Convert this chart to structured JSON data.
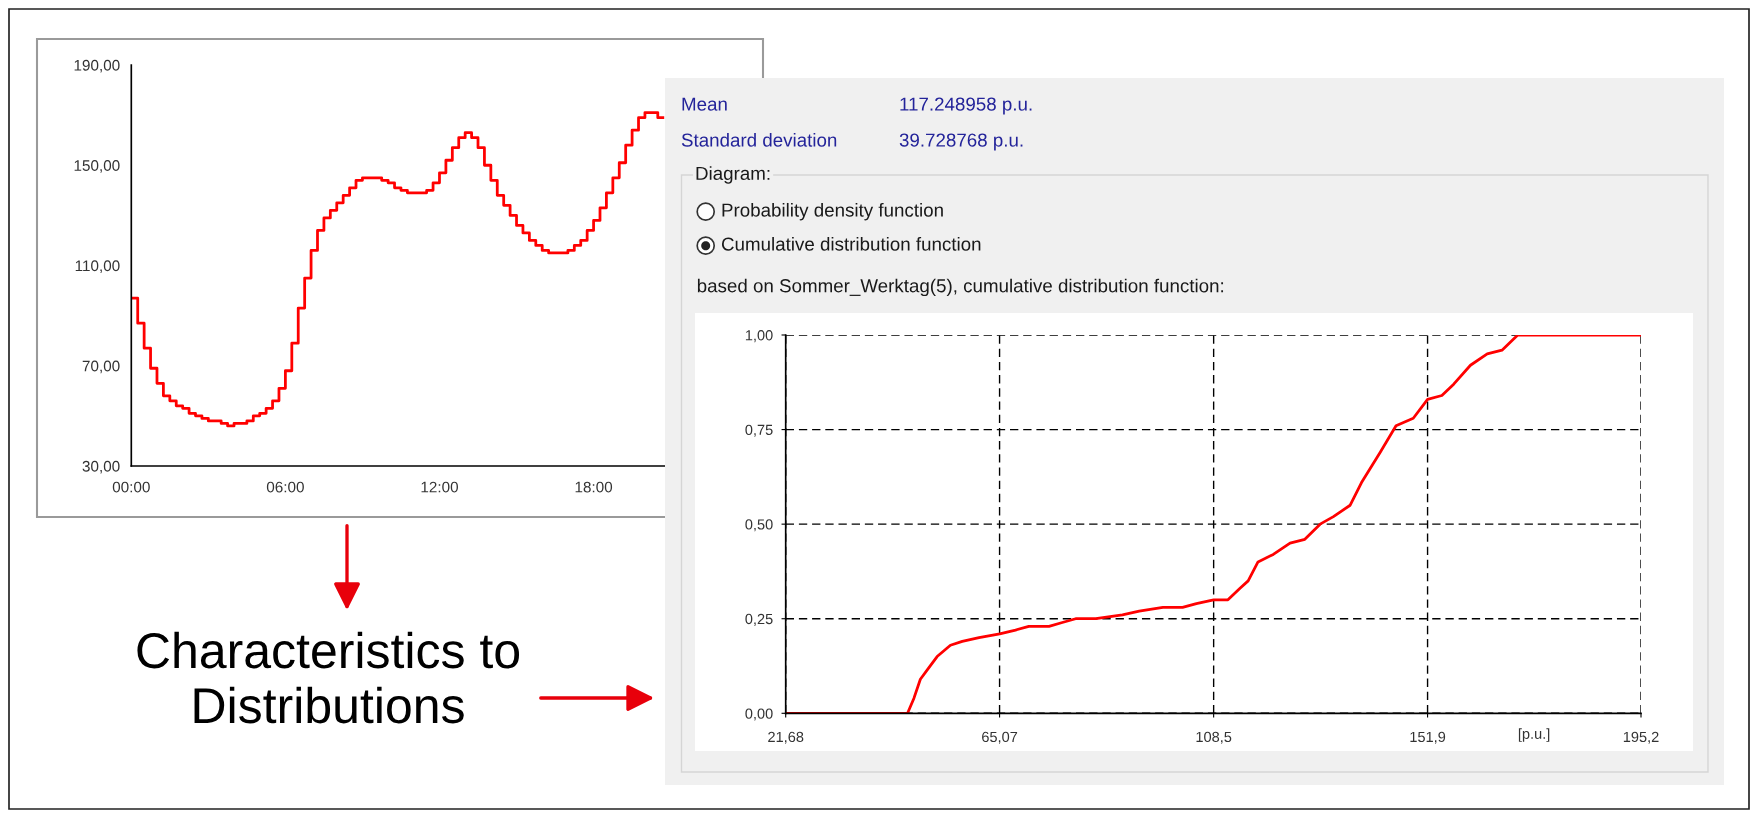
{
  "chart_data": [
    {
      "type": "step",
      "x": [
        0,
        0.25,
        0.5,
        0.75,
        1,
        1.25,
        1.5,
        1.75,
        2,
        2.25,
        2.5,
        2.75,
        3,
        3.25,
        3.5,
        3.75,
        4,
        4.25,
        4.5,
        4.75,
        5,
        5.25,
        5.5,
        5.75,
        6,
        6.25,
        6.5,
        6.75,
        7,
        7.25,
        7.5,
        7.75,
        8,
        8.25,
        8.5,
        8.75,
        9,
        9.25,
        9.5,
        9.75,
        10,
        10.25,
        10.5,
        10.75,
        11,
        11.25,
        11.5,
        11.75,
        12,
        12.25,
        12.5,
        12.75,
        13,
        13.25,
        13.5,
        13.75,
        14,
        14.25,
        14.5,
        14.75,
        15,
        15.25,
        15.5,
        15.75,
        16,
        16.25,
        16.5,
        16.75,
        17,
        17.25,
        17.5,
        17.75,
        18,
        18.25,
        18.5,
        18.75,
        19,
        19.25,
        19.5,
        19.75,
        20,
        20.25,
        20.5,
        20.75
      ],
      "values": [
        97,
        87,
        77,
        69,
        63,
        58,
        56,
        54,
        53,
        51,
        50,
        49,
        48,
        48,
        47,
        46,
        47,
        47,
        48,
        50,
        51,
        53,
        56,
        61,
        68,
        79,
        93,
        105,
        116,
        124,
        129,
        132,
        135,
        138,
        141,
        144,
        145,
        145,
        145,
        144,
        143,
        141,
        140,
        139,
        139,
        139,
        140,
        143,
        147,
        152,
        157,
        161,
        163,
        161,
        157,
        150,
        144,
        138,
        134,
        130,
        126,
        123,
        120,
        118,
        116,
        115,
        115,
        115,
        116,
        118,
        120,
        124,
        128,
        133,
        139,
        145,
        151,
        158,
        164,
        169,
        171,
        171,
        169,
        169
      ],
      "color": "#ff0000",
      "xlim": [
        0,
        20.75
      ],
      "xticks": [
        {
          "value": 0,
          "label": "00:00"
        },
        {
          "value": 6,
          "label": "06:00"
        },
        {
          "value": 12,
          "label": "12:00"
        },
        {
          "value": 18,
          "label": "18:00"
        }
      ],
      "ylim": [
        30,
        190
      ],
      "yticks": [
        {
          "value": 30,
          "label": "30,00"
        },
        {
          "value": 70,
          "label": "70,00"
        },
        {
          "value": 110,
          "label": "110,00"
        },
        {
          "value": 150,
          "label": "150,00"
        },
        {
          "value": 190,
          "label": "190,00"
        }
      ],
      "annotations": [
        "Characteristics to\nDistributions"
      ]
    },
    {
      "type": "line",
      "title": "based on Sommer_Werktag(5), cumulative distribution function:",
      "xlabel": "[p.u.]",
      "x": [
        21.68,
        46.4,
        47.7,
        49.0,
        50.7,
        52.4,
        55.1,
        57.5,
        60.9,
        65.1,
        68.3,
        71.0,
        75.1,
        77.8,
        80.5,
        84.6,
        90.0,
        93.4,
        98.2,
        102.2,
        105.0,
        108.5,
        111.4,
        113.8,
        115.5,
        117.5,
        120.6,
        124.0,
        127.0,
        130.1,
        132.8,
        136.2,
        138.5,
        142.3,
        145.5,
        149.0,
        151.9,
        154.8,
        157.2,
        160.6,
        164.0,
        167.0,
        170.2,
        195.2
      ],
      "values": [
        0,
        0,
        0.04,
        0.09,
        0.12,
        0.15,
        0.18,
        0.19,
        0.2,
        0.21,
        0.22,
        0.23,
        0.23,
        0.24,
        0.25,
        0.25,
        0.26,
        0.27,
        0.28,
        0.28,
        0.29,
        0.3,
        0.3,
        0.33,
        0.35,
        0.4,
        0.42,
        0.45,
        0.46,
        0.5,
        0.52,
        0.55,
        0.61,
        0.69,
        0.76,
        0.78,
        0.83,
        0.84,
        0.87,
        0.92,
        0.95,
        0.96,
        1,
        1
      ],
      "color": "#ff0000",
      "xlim": [
        21.68,
        195.2
      ],
      "xticks": [
        {
          "value": 21.68,
          "label": "21,68"
        },
        {
          "value": 65.07,
          "label": "65,07"
        },
        {
          "value": 108.5,
          "label": "108,5"
        },
        {
          "value": 151.9,
          "label": "151,9"
        },
        {
          "value": 195.2,
          "label": "195,2"
        }
      ],
      "ylim": [
        0,
        1
      ],
      "yticks": [
        {
          "value": 0,
          "label": "0,00"
        },
        {
          "value": 0.25,
          "label": "0,25"
        },
        {
          "value": 0.5,
          "label": "0,50"
        },
        {
          "value": 0.75,
          "label": "0,75"
        },
        {
          "value": 1,
          "label": "1,00"
        }
      ],
      "grid": true,
      "annotations": [
        "Mean",
        "117.248958 p.u.",
        "Standard deviation",
        "39.728768 p.u.",
        "Diagram:",
        "Probability density function",
        "Cumulative distribution function"
      ]
    }
  ]
}
